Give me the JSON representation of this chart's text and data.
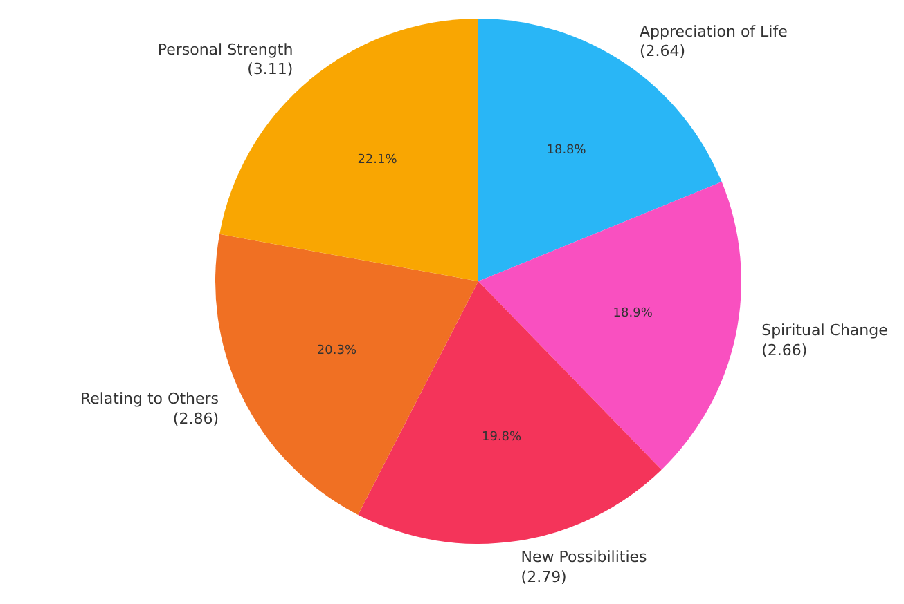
{
  "chart_data": {
    "type": "pie",
    "categories": [
      "Appreciation of Life\n(2.64)",
      "Spiritual Change\n(2.66)",
      "New Possibilities\n(2.79)",
      "Relating to Others\n(2.86)",
      "Personal Strength\n(3.11)"
    ],
    "values": [
      18.8,
      18.9,
      19.8,
      20.3,
      22.1
    ],
    "value_labels": [
      "18.8%",
      "18.9%",
      "19.8%",
      "20.3%",
      "22.1%"
    ],
    "colors": [
      "#29b6f6",
      "#f950c0",
      "#f4345a",
      "#f07023",
      "#f9a602"
    ]
  }
}
